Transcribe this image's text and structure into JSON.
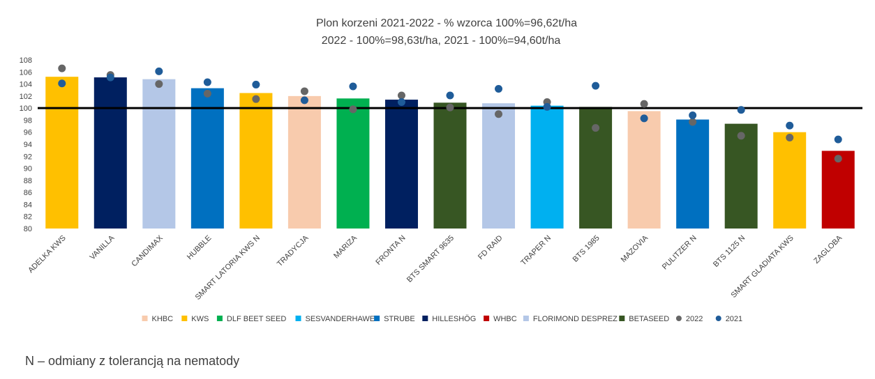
{
  "chart_data": {
    "type": "bar",
    "title": "Plon korzeni 2021-2022 - % wzorca 100%=96,62t/ha",
    "subtitle": "2022 - 100%=98,63t/ha, 2021 - 100%=94,60t/ha",
    "ylim": [
      80,
      108
    ],
    "yticks": [
      "80",
      "82",
      "84",
      "86",
      "88",
      "90",
      "92",
      "94",
      "96",
      "98",
      "100",
      "102",
      "104",
      "106",
      "108"
    ],
    "reference_line": 100,
    "grid": false,
    "legend_position": "bottom",
    "categories": [
      "ADELKA KWS",
      "VANILLA",
      "CANDIMAX",
      "HUBBLE",
      "SMART LATORIA KWS N",
      "TRADYCJA",
      "MARIZA",
      "FRONTA N",
      "BTS SMART 9635",
      "FD RAID",
      "TRAPER N",
      "BTS 1985",
      "MAZOVIA",
      "PULITZER N",
      "BTS 1125 N",
      "SMART GLADIATA KWS",
      "ZAGLOBA"
    ],
    "values": [
      105.2,
      105.1,
      104.8,
      103.3,
      102.5,
      102.0,
      101.6,
      101.4,
      100.9,
      100.8,
      100.4,
      100.2,
      99.5,
      98.1,
      97.4,
      96.0,
      92.9
    ],
    "breeder": [
      "KWS",
      "HILLESHÖG",
      "FLORIMOND DESPREZ",
      "STRUBE",
      "KWS",
      "KHBC",
      "DLF BEET SEED",
      "HILLESHÖG",
      "BETASEED",
      "FLORIMOND DESPREZ",
      "SESVANDERHAWE",
      "BETASEED",
      "KHBC",
      "STRUBE",
      "BETASEED",
      "KWS",
      "WHBC"
    ],
    "breeders": [
      {
        "name": "KHBC",
        "color": "#F8CBAD"
      },
      {
        "name": "KWS",
        "color": "#FFC000"
      },
      {
        "name": "DLF BEET SEED",
        "color": "#00B050"
      },
      {
        "name": "SESVANDERHAWE",
        "color": "#00B0F0"
      },
      {
        "name": "STRUBE",
        "color": "#0070C0"
      },
      {
        "name": "HILLESHÖG",
        "color": "#002060"
      },
      {
        "name": "WHBC",
        "color": "#C00000"
      },
      {
        "name": "FLORIMOND DESPREZ",
        "color": "#B4C7E7"
      },
      {
        "name": "BETASEED",
        "color": "#375623"
      }
    ],
    "series": [
      {
        "name": "2022",
        "type": "scatter",
        "color": "#666666",
        "values": [
          106.6,
          105.5,
          104.0,
          102.4,
          101.5,
          102.8,
          99.8,
          102.1,
          100.1,
          99.0,
          101.0,
          96.7,
          100.7,
          97.7,
          95.4,
          95.1,
          91.6
        ]
      },
      {
        "name": "2021",
        "type": "scatter",
        "color": "#1F5C99",
        "values": [
          104.1,
          105.1,
          106.1,
          104.3,
          103.9,
          101.3,
          103.6,
          101.0,
          102.1,
          103.2,
          100.2,
          103.7,
          98.3,
          98.8,
          99.7,
          97.1,
          94.8
        ]
      }
    ]
  },
  "footnote": "N – odmiany z tolerancją na nematody"
}
